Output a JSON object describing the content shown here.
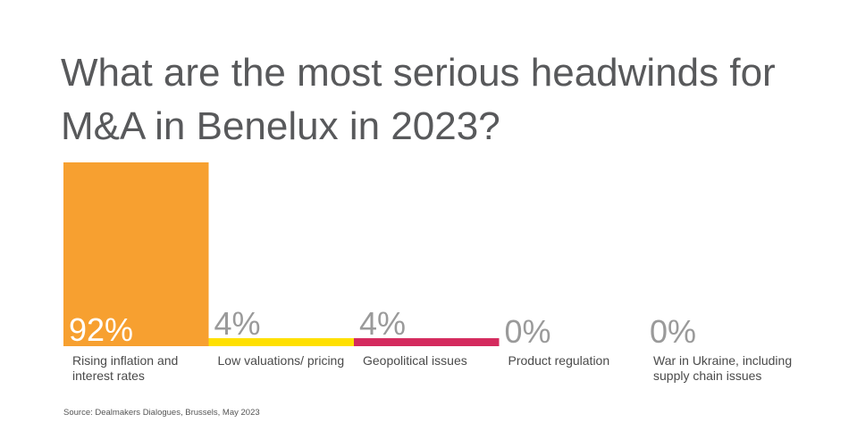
{
  "chart_data": {
    "type": "bar",
    "title": "What are the most serious headwinds for M&A in Benelux in 2023?",
    "categories": [
      "Rising inflation and interest rates",
      "Low valuations/ pricing",
      "Geopolitical issues",
      "Product regulation",
      "War in Ukraine, including supply chain issues"
    ],
    "values": [
      92,
      4,
      4,
      0,
      0
    ],
    "value_labels": [
      "92%",
      "4%",
      "4%",
      "0%",
      "0%"
    ],
    "colors": [
      "#F7A030",
      "#FFE000",
      "#D42A5E",
      "#cccccc",
      "#cccccc"
    ],
    "ylim": [
      0,
      92
    ],
    "grid": false,
    "source": "Source: Dealmakers Dialogues, Brussels, May 2023"
  }
}
